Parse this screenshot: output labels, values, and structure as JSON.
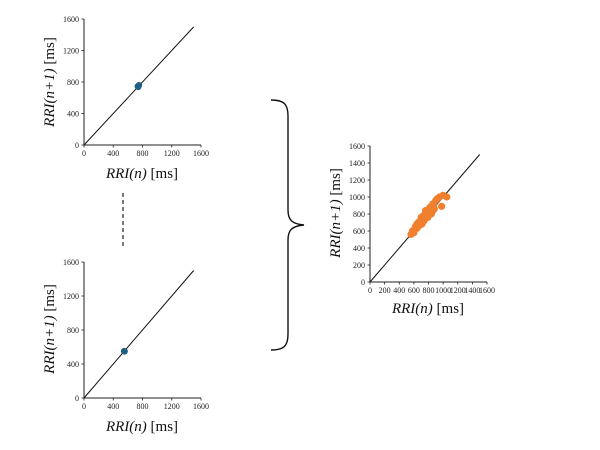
{
  "chart_data": [
    {
      "type": "scatter",
      "xlabel": "RRI(n) [ms]",
      "ylabel": "RRI(n+1) [ms]",
      "xlim": [
        0,
        1600
      ],
      "ylim": [
        0,
        1600
      ],
      "xticks": [
        0,
        400,
        800,
        1200,
        1600
      ],
      "yticks": [
        0,
        400,
        800,
        1200,
        1600
      ],
      "identity_line": [
        0,
        1500
      ],
      "series": [
        {
          "color": "#1f5f84",
          "points": [
            [
              735,
              745
            ],
            [
              752,
              760
            ],
            [
              742,
              738
            ]
          ]
        }
      ]
    },
    {
      "type": "scatter",
      "xlabel": "RRI(n) [ms]",
      "ylabel": "RRI(n+1) [ms]",
      "xlim": [
        0,
        1600
      ],
      "ylim": [
        0,
        1600
      ],
      "xticks": [
        0,
        400,
        800,
        1200,
        1600
      ],
      "yticks": [
        0,
        400,
        800,
        1200,
        1600
      ],
      "identity_line": [
        0,
        1500
      ],
      "series": [
        {
          "color": "#1f5f84",
          "points": [
            [
              548,
              552
            ],
            [
              556,
              548
            ]
          ]
        }
      ]
    },
    {
      "type": "scatter",
      "xlabel": "RRI(n) [ms]",
      "ylabel": "RRI(n+1) [ms]",
      "xlim": [
        0,
        1600
      ],
      "ylim": [
        0,
        1600
      ],
      "xticks": [
        0,
        200,
        400,
        600,
        800,
        1000,
        1200,
        1400,
        1600
      ],
      "yticks": [
        0,
        200,
        400,
        600,
        800,
        1000,
        1200,
        1400,
        1600
      ],
      "identity_line": [
        0,
        1500
      ],
      "series": [
        {
          "color": "#f07f2e",
          "points": [
            [
              560,
              560
            ],
            [
              580,
              600
            ],
            [
              600,
              580
            ],
            [
              610,
              620
            ],
            [
              620,
              650
            ],
            [
              640,
              630
            ],
            [
              650,
              670
            ],
            [
              660,
              700
            ],
            [
              670,
              660
            ],
            [
              680,
              690
            ],
            [
              690,
              720
            ],
            [
              700,
              700
            ],
            [
              700,
              760
            ],
            [
              710,
              680
            ],
            [
              720,
              740
            ],
            [
              730,
              780
            ],
            [
              740,
              720
            ],
            [
              750,
              760
            ],
            [
              760,
              800
            ],
            [
              770,
              780
            ],
            [
              780,
              840
            ],
            [
              790,
              760
            ],
            [
              800,
              820
            ],
            [
              810,
              800
            ],
            [
              820,
              860
            ],
            [
              830,
              820
            ],
            [
              840,
              800
            ],
            [
              850,
              880
            ],
            [
              860,
              840
            ],
            [
              870,
              900
            ],
            [
              880,
              860
            ],
            [
              900,
              960
            ],
            [
              920,
              980
            ],
            [
              950,
              1000
            ],
            [
              1000,
              1020
            ],
            [
              980,
              890
            ],
            [
              1050,
              1000
            ],
            [
              760,
              840
            ],
            [
              720,
              700
            ],
            [
              640,
              680
            ],
            [
              820,
              880
            ],
            [
              860,
              920
            ]
          ]
        }
      ]
    }
  ]
}
